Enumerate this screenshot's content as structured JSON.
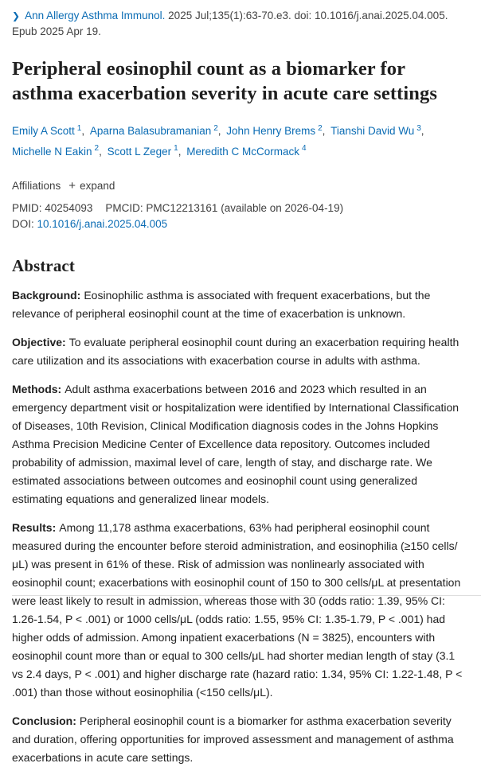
{
  "citation": {
    "chevron": "❯",
    "journal": "Ann Allergy Asthma Immunol.",
    "details": "2025 Jul;135(1):63-70.e3. doi: 10.1016/j.anai.2025.04.005.",
    "epub": "Epub 2025 Apr 19."
  },
  "title": "Peripheral eosinophil count as a biomarker for asthma exacerbation severity in acute care settings",
  "authors": [
    {
      "name": "Emily A Scott",
      "sup": "1",
      "sep": ", "
    },
    {
      "name": "Aparna Balasubramanian",
      "sup": "2",
      "sep": ", "
    },
    {
      "name": "John Henry Brems",
      "sup": "2",
      "sep": ", "
    },
    {
      "name": "Tianshi David Wu",
      "sup": "3",
      "sep": ", "
    },
    {
      "name": "Michelle N Eakin",
      "sup": "2",
      "sep": ", "
    },
    {
      "name": "Scott L Zeger",
      "sup": "1",
      "sep": ", "
    },
    {
      "name": "Meredith C McCormack",
      "sup": "4",
      "sep": ""
    }
  ],
  "affiliations": {
    "label": "Affiliations",
    "plus": "+",
    "expand_label": "expand"
  },
  "identifiers": {
    "pmid_label": "PMID:",
    "pmid_value": "40254093",
    "pmcid_label": "PMCID:",
    "pmcid_value": "PMC12213161",
    "pmcid_note": "(available on 2026-04-19)",
    "doi_label": "DOI:",
    "doi_value": "10.1016/j.anai.2025.04.005"
  },
  "abstract": {
    "heading": "Abstract",
    "sections": [
      {
        "label": "Background:",
        "text": "Eosinophilic asthma is associated with frequent exacerbations, but the relevance of peripheral eosinophil count at the time of exacerbation is unknown."
      },
      {
        "label": "Objective:",
        "text": "To evaluate peripheral eosinophil count during an exacerbation requiring health care utilization and its associations with exacerbation course in adults with asthma."
      },
      {
        "label": "Methods:",
        "text": "Adult asthma exacerbations between 2016 and 2023 which resulted in an emergency department visit or hospitalization were identified by International Classification of Diseases, 10th Revision, Clinical Modification diagnosis codes in the Johns Hopkins Asthma Precision Medicine Center of Excellence data repository. Outcomes included probability of admission, maximal level of care, length of stay, and discharge rate. We estimated associations between outcomes and eosinophil count using generalized estimating equations and generalized linear models."
      },
      {
        "label": "Results:",
        "text": "Among 11,178 asthma exacerbations, 63% had peripheral eosinophil count measured during the encounter before steroid administration, and eosinophilia (≥150 cells/μL) was present in 61% of these. Risk of admission was nonlinearly associated with eosinophil count; exacerbations with eosinophil count of 150 to 300 cells/μL at presentation were least likely to result in admission, whereas those with 30 (odds ratio: 1.39, 95% CI: 1.26-1.54, P < .001) or 1000 cells/μL (odds ratio: 1.55, 95% CI: 1.35-1.79, P < .001) had higher odds of admission. Among inpatient exacerbations (N = 3825), encounters with eosinophil count more than or equal to 300 cells/μL had shorter median length of stay (3.1 vs 2.4 days, P < .001) and higher discharge rate (hazard ratio: 1.34, 95% CI: 1.22-1.48, P < .001) than those without eosinophilia (<150 cells/μL)."
      },
      {
        "label": "Conclusion:",
        "text": "Peripheral eosinophil count is a biomarker for asthma exacerbation severity and duration, offering opportunities for improved assessment and management of asthma exacerbations in acute care settings."
      }
    ]
  },
  "colors": {
    "link_blue": "#0b6cb4",
    "text_dark": "#212121",
    "text_muted": "#424242"
  }
}
